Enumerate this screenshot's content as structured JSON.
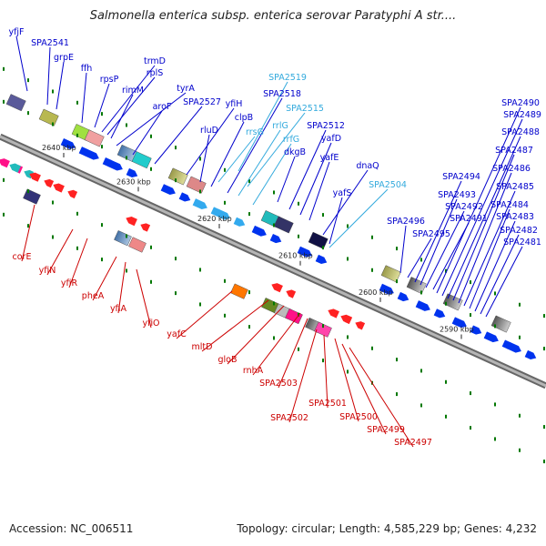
{
  "title": "Salmonella enterica subsp. enterica serovar Paratyphi A str....",
  "footer": {
    "accession": "Accession: NC_006511",
    "summary": "Topology: circular; Length: 4,585,229 bp; Genes: 4,232"
  },
  "colors": {
    "forward_label": "#0000cc",
    "reverse_label": "#cc0000",
    "rna_label": "#33aadd",
    "backbone": "#888888",
    "tick_mark": "#007700"
  },
  "ticks": [
    "2640 kbp",
    "2630 kbp",
    "2620 kbp",
    "2610 kbp",
    "2600 kbp",
    "2590 kbp"
  ],
  "forward_labels": [
    "yfjF",
    "SPA2541",
    "grpE",
    "ffh",
    "rpsP",
    "trmD",
    "rplS",
    "rimM",
    "tyrA",
    "aroF",
    "SPA2527",
    "yfiH",
    "rluD",
    "clpB",
    "SPA2518",
    "dkgB",
    "SPA2512",
    "yafD",
    "yafE",
    "dnaQ",
    "yafS",
    "SPA2496",
    "SPA2495",
    "SPA2494",
    "SPA2493",
    "SPA2492",
    "SPA2491",
    "SPA2490",
    "SPA2489",
    "SPA2488",
    "SPA2487",
    "SPA2486",
    "SPA2485",
    "SPA2484",
    "SPA2483",
    "SPA2482",
    "SPA2481"
  ],
  "rna_labels": [
    "SPA2519",
    "SPA2515",
    "rrsG",
    "rrlG",
    "rrfG",
    "SPA2504"
  ],
  "reverse_labels": [
    "corE",
    "yfiN",
    "yfiR",
    "pheA",
    "yfiA",
    "yfiO",
    "yafC",
    "mltD",
    "gloB",
    "rnhA",
    "SPA2503",
    "SPA2502",
    "SPA2501",
    "SPA2500",
    "SPA2499",
    "SPA2497"
  ]
}
